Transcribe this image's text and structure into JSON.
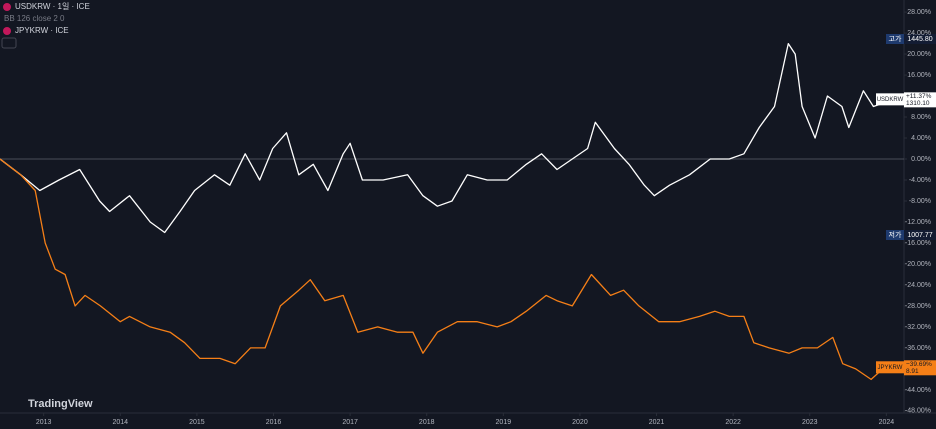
{
  "header": {
    "main": "USDKRW · 1일 · ICE",
    "indicator": "BB 126 close 2 0",
    "compare": "JPYKRW · ICE"
  },
  "watermark": "TradingView",
  "range_labels": {
    "high_tag": "고가",
    "high": "1445.80",
    "low_tag": "저가",
    "low": "1007.77"
  },
  "chart_data": {
    "type": "line",
    "xlim": [
      2012.43,
      2024.23
    ],
    "xticks": [
      2013,
      2014,
      2015,
      2016,
      2017,
      2018,
      2019,
      2020,
      2021,
      2022,
      2023,
      2024
    ],
    "ylim": [
      -48.4,
      30.3
    ],
    "yticks": [
      {
        "value": 28,
        "label": "28.00%"
      },
      {
        "value": 24,
        "label": "24.00%"
      },
      {
        "value": 20,
        "label": "20.00%"
      },
      {
        "value": 16,
        "label": "16.00%"
      },
      {
        "value": 12,
        "label": "12.00%"
      },
      {
        "value": 8,
        "label": "8.00%"
      },
      {
        "value": 4,
        "label": "4.00%"
      },
      {
        "value": 0,
        "label": "0.00%"
      },
      {
        "value": -4,
        "label": "-4.00%"
      },
      {
        "value": -8,
        "label": "-8.00%"
      },
      {
        "value": -12,
        "label": "-12.00%"
      },
      {
        "value": -16,
        "label": "-16.00%"
      },
      {
        "value": -20,
        "label": "-20.00%"
      },
      {
        "value": -24,
        "label": "-24.00%"
      },
      {
        "value": -28,
        "label": "-28.00%"
      },
      {
        "value": -32,
        "label": "-32.00%"
      },
      {
        "value": -36,
        "label": "-36.00%"
      },
      {
        "value": -40,
        "label": "-40.00%"
      },
      {
        "value": -44,
        "label": "-44.00%"
      },
      {
        "value": -48,
        "label": "-48.00%"
      }
    ],
    "baseline": 0,
    "series": [
      {
        "name": "USDKRW",
        "color": "#ffffff",
        "last_label": "+11.37%",
        "price_label": "1310.10",
        "x": [
          2012.43,
          2012.7,
          2012.95,
          2013.2,
          2013.47,
          2013.73,
          2013.86,
          2014.12,
          2014.39,
          2014.58,
          2014.78,
          2014.97,
          2015.23,
          2015.43,
          2015.63,
          2015.82,
          2015.99,
          2016.17,
          2016.33,
          2016.52,
          2016.71,
          2016.91,
          2017.0,
          2017.16,
          2017.43,
          2017.75,
          2017.95,
          2018.14,
          2018.33,
          2018.53,
          2018.79,
          2019.05,
          2019.3,
          2019.5,
          2019.7,
          2019.9,
          2020.1,
          2020.2,
          2020.45,
          2020.64,
          2020.84,
          2020.97,
          2021.17,
          2021.43,
          2021.7,
          2021.95,
          2022.14,
          2022.34,
          2022.54,
          2022.72,
          2022.81,
          2022.9,
          2023.07,
          2023.23,
          2023.42,
          2023.51,
          2023.7,
          2023.83,
          2024.03,
          2024.16
        ],
        "values": [
          0,
          -3,
          -6,
          -4,
          -2,
          -8,
          -10,
          -7,
          -12,
          -14,
          -10,
          -6,
          -3,
          -5,
          1,
          -4,
          2,
          5,
          -3,
          -1,
          -6,
          1,
          3,
          -4,
          -4,
          -3,
          -7,
          -9,
          -8,
          -3,
          -4,
          -4,
          -1,
          1,
          -2,
          0,
          2,
          7,
          2,
          -1,
          -5,
          -7,
          -5,
          -3,
          0,
          0,
          1,
          6,
          10,
          22,
          20,
          10,
          4,
          12,
          10,
          6,
          13,
          10,
          11,
          11.37
        ]
      },
      {
        "name": "JPYKRW",
        "color": "#f57f17",
        "last_label": "−39.69%",
        "price_label": "8.91",
        "x": [
          2012.43,
          2012.7,
          2012.89,
          2013.02,
          2013.15,
          2013.28,
          2013.41,
          2013.54,
          2013.74,
          2014.0,
          2014.12,
          2014.39,
          2014.65,
          2014.84,
          2015.04,
          2015.3,
          2015.5,
          2015.7,
          2015.89,
          2016.09,
          2016.33,
          2016.48,
          2016.67,
          2016.91,
          2017.1,
          2017.36,
          2017.62,
          2017.82,
          2017.95,
          2018.14,
          2018.4,
          2018.66,
          2018.92,
          2019.1,
          2019.3,
          2019.56,
          2019.7,
          2019.9,
          2020.15,
          2020.4,
          2020.57,
          2020.77,
          2021.03,
          2021.3,
          2021.56,
          2021.76,
          2021.95,
          2022.14,
          2022.27,
          2022.47,
          2022.73,
          2022.9,
          2023.1,
          2023.3,
          2023.43,
          2023.6,
          2023.8,
          2024.03,
          2024.16
        ],
        "values": [
          0,
          -3,
          -6,
          -16,
          -21,
          -22,
          -28,
          -26,
          -28,
          -31,
          -30,
          -32,
          -33,
          -35,
          -38,
          -38,
          -39,
          -36,
          -36,
          -28,
          -25,
          -23,
          -27,
          -26,
          -33,
          -32,
          -33,
          -33,
          -37,
          -33,
          -31,
          -31,
          -32,
          -31,
          -29,
          -26,
          -27,
          -28,
          -22,
          -26,
          -25,
          -28,
          -31,
          -31,
          -30,
          -29,
          -30,
          -30,
          -35,
          -36,
          -37,
          -36,
          -36,
          -34,
          -39,
          -40,
          -42,
          -39,
          -39.69
        ]
      }
    ]
  }
}
